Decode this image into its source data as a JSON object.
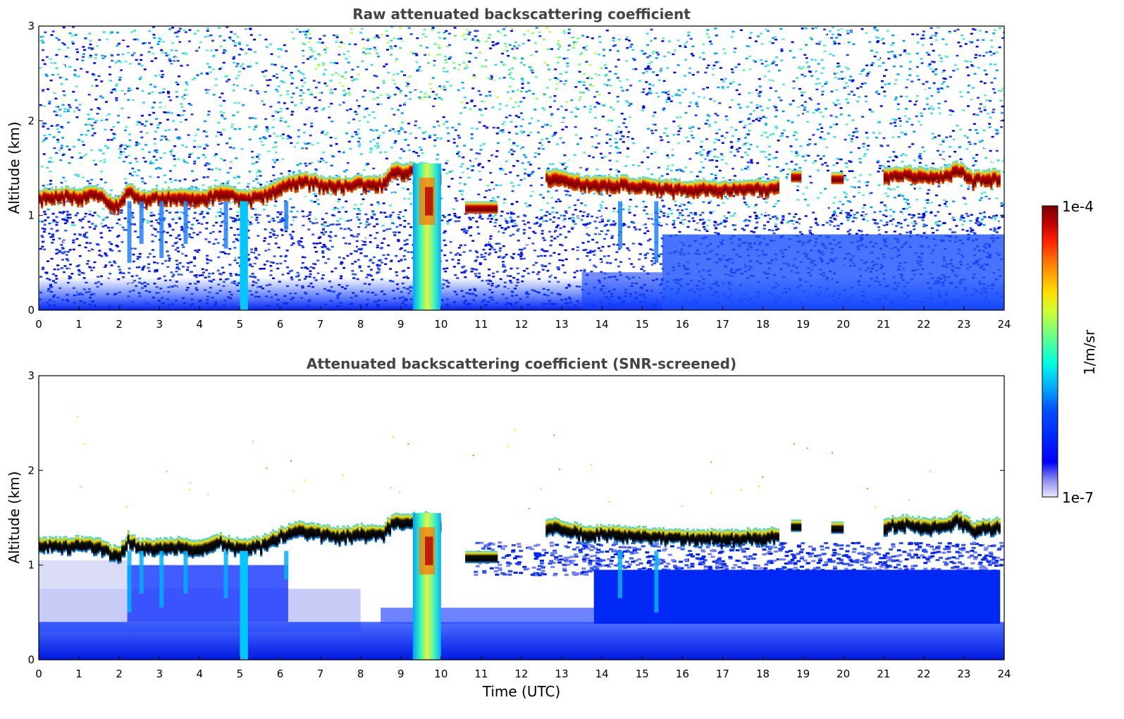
{
  "chart_data": [
    {
      "type": "heatmap",
      "title": "Raw attenuated backscattering coefficient",
      "xlabel": "",
      "ylabel": "Altitude (km)",
      "xlim": [
        0,
        24
      ],
      "ylim": [
        0,
        3
      ],
      "x_ticks": [
        "0",
        "1",
        "2",
        "3",
        "4",
        "5",
        "6",
        "7",
        "8",
        "9",
        "10",
        "11",
        "12",
        "13",
        "14",
        "15",
        "16",
        "17",
        "18",
        "19",
        "20",
        "21",
        "22",
        "23",
        "24"
      ],
      "y_ticks": [
        "0",
        "1",
        "2",
        "3"
      ],
      "screened": false,
      "layer_top_km": [
        [
          0,
          1.28
        ],
        [
          0.5,
          1.3
        ],
        [
          1,
          1.3
        ],
        [
          1.5,
          1.3
        ],
        [
          1.8,
          1.2
        ],
        [
          2.0,
          1.22
        ],
        [
          2.2,
          1.35
        ],
        [
          2.5,
          1.27
        ],
        [
          3,
          1.28
        ],
        [
          3.5,
          1.3
        ],
        [
          4,
          1.27
        ],
        [
          4.5,
          1.33
        ],
        [
          5,
          1.27
        ],
        [
          5.5,
          1.3
        ],
        [
          6,
          1.4
        ],
        [
          6.5,
          1.47
        ],
        [
          7,
          1.42
        ],
        [
          7.5,
          1.4
        ],
        [
          8,
          1.43
        ],
        [
          8.5,
          1.42
        ],
        [
          8.8,
          1.56
        ],
        [
          9.3,
          1.55
        ],
        [
          9.6,
          1.55
        ],
        [
          10,
          1.5
        ],
        [
          12.6,
          1.5
        ],
        [
          13,
          1.48
        ],
        [
          13.5,
          1.42
        ],
        [
          14,
          1.42
        ],
        [
          14.5,
          1.42
        ],
        [
          15,
          1.4
        ],
        [
          15.5,
          1.38
        ],
        [
          16,
          1.37
        ],
        [
          16.5,
          1.38
        ],
        [
          17,
          1.37
        ],
        [
          17.5,
          1.38
        ],
        [
          18,
          1.38
        ],
        [
          18.4,
          1.4
        ],
        [
          21,
          1.5
        ],
        [
          21.5,
          1.53
        ],
        [
          22,
          1.5
        ],
        [
          22.5,
          1.5
        ],
        [
          22.8,
          1.58
        ],
        [
          23.2,
          1.47
        ],
        [
          23.5,
          1.48
        ],
        [
          23.9,
          1.5
        ]
      ],
      "features": [
        {
          "label": "rain",
          "x_range": [
            9.3,
            10.0
          ]
        },
        {
          "label": "precip-streak",
          "x_range": [
            5.0,
            5.2
          ]
        }
      ]
    },
    {
      "type": "heatmap",
      "title": "Attenuated backscattering coefficient (SNR-screened)",
      "xlabel": "Time (UTC)",
      "ylabel": "Altitude (km)",
      "xlim": [
        0,
        24
      ],
      "ylim": [
        0,
        3
      ],
      "x_ticks": [
        "0",
        "1",
        "2",
        "3",
        "4",
        "5",
        "6",
        "7",
        "8",
        "9",
        "10",
        "11",
        "12",
        "13",
        "14",
        "15",
        "16",
        "17",
        "18",
        "19",
        "20",
        "21",
        "22",
        "23",
        "24"
      ],
      "y_ticks": [
        "0",
        "1",
        "2",
        "3"
      ],
      "screened": true,
      "layer_top_km": [
        [
          0,
          1.28
        ],
        [
          0.5,
          1.3
        ],
        [
          1,
          1.3
        ],
        [
          1.5,
          1.3
        ],
        [
          1.8,
          1.2
        ],
        [
          2.0,
          1.22
        ],
        [
          2.2,
          1.35
        ],
        [
          2.5,
          1.27
        ],
        [
          3,
          1.28
        ],
        [
          3.5,
          1.3
        ],
        [
          4,
          1.27
        ],
        [
          4.5,
          1.33
        ],
        [
          5,
          1.27
        ],
        [
          5.5,
          1.3
        ],
        [
          6,
          1.4
        ],
        [
          6.5,
          1.47
        ],
        [
          7,
          1.42
        ],
        [
          7.5,
          1.4
        ],
        [
          8,
          1.43
        ],
        [
          8.5,
          1.42
        ],
        [
          8.8,
          1.56
        ],
        [
          9.3,
          1.55
        ],
        [
          9.6,
          1.55
        ],
        [
          10,
          1.5
        ],
        [
          12.6,
          1.5
        ],
        [
          13,
          1.48
        ],
        [
          13.5,
          1.42
        ],
        [
          14,
          1.42
        ],
        [
          14.5,
          1.42
        ],
        [
          15,
          1.4
        ],
        [
          15.5,
          1.38
        ],
        [
          16,
          1.37
        ],
        [
          16.5,
          1.38
        ],
        [
          17,
          1.37
        ],
        [
          17.5,
          1.38
        ],
        [
          18,
          1.38
        ],
        [
          18.4,
          1.4
        ],
        [
          21,
          1.5
        ],
        [
          21.5,
          1.53
        ],
        [
          22,
          1.5
        ],
        [
          22.5,
          1.5
        ],
        [
          22.8,
          1.58
        ],
        [
          23.2,
          1.47
        ],
        [
          23.5,
          1.48
        ],
        [
          23.9,
          1.5
        ]
      ]
    }
  ],
  "colorbar": {
    "label": "1/m/sr",
    "max_label": "1e-4",
    "min_label": "1e-7",
    "scale": "log",
    "colormap": "jet"
  }
}
